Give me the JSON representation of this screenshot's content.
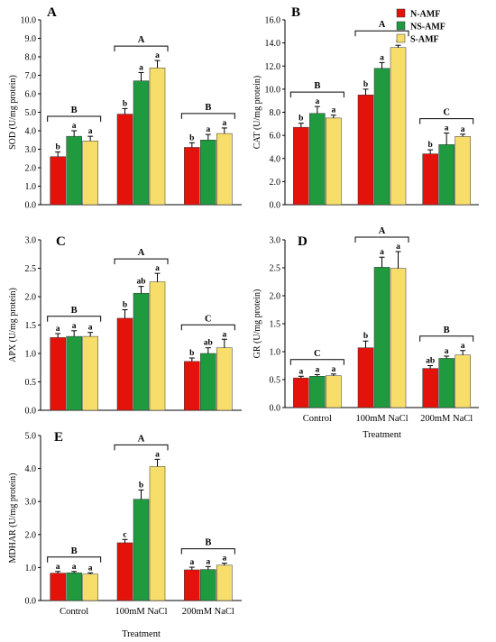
{
  "legend": [
    {
      "label": "N-AMF",
      "color": "#e3120b"
    },
    {
      "label": "NS-AMF",
      "color": "#1f9a3e"
    },
    {
      "label": "S-AMF",
      "color": "#f7de6b"
    }
  ],
  "chart_data": [
    {
      "panel": "A",
      "type": "bar",
      "ylabel": "SOD (U/mg protein)",
      "ylim": [
        0,
        10
      ],
      "yticks": [
        "0.0",
        "1.0",
        "2.0",
        "3.0",
        "4.0",
        "5.0",
        "6.0",
        "7.0",
        "8.0",
        "9.0",
        "10.0"
      ],
      "categories": [
        "Control",
        "100mM NaCl",
        "200mM NaCl"
      ],
      "series": [
        {
          "name": "N-AMF",
          "values": [
            2.6,
            4.9,
            3.1
          ],
          "errors": [
            0.25,
            0.3,
            0.25
          ],
          "letters": [
            "b",
            "b",
            "b"
          ]
        },
        {
          "name": "NS-AMF",
          "values": [
            3.7,
            6.7,
            3.5
          ],
          "errors": [
            0.3,
            0.45,
            0.3
          ],
          "letters": [
            "a",
            "a",
            "a"
          ]
        },
        {
          "name": "S-AMF",
          "values": [
            3.45,
            7.4,
            3.85
          ],
          "errors": [
            0.25,
            0.4,
            0.3
          ],
          "letters": [
            "a",
            "a",
            "a"
          ]
        }
      ],
      "group_letters": [
        "B",
        "A",
        "B"
      ],
      "xlabel": ""
    },
    {
      "panel": "B",
      "type": "bar",
      "ylabel": "CAT (U/mg protein)",
      "ylim": [
        0,
        16
      ],
      "yticks": [
        "0.0",
        "2.0",
        "4.0",
        "6.0",
        "8.0",
        "10.0",
        "12.0",
        "14.0",
        "16.0"
      ],
      "categories": [
        "Control",
        "100mM NaCl",
        "200mM NaCl"
      ],
      "series": [
        {
          "name": "N-AMF",
          "values": [
            6.7,
            9.5,
            4.4
          ],
          "errors": [
            0.35,
            0.5,
            0.35
          ],
          "letters": [
            "b",
            "b",
            "b"
          ]
        },
        {
          "name": "NS-AMF",
          "values": [
            7.9,
            11.8,
            5.2
          ],
          "errors": [
            0.6,
            0.5,
            1.0
          ],
          "letters": [
            "a",
            "a",
            "a"
          ]
        },
        {
          "name": "S-AMF",
          "values": [
            7.5,
            13.6,
            5.9
          ],
          "errors": [
            0.25,
            0.2,
            0.2
          ],
          "letters": [
            "a",
            "a",
            "a"
          ]
        }
      ],
      "group_letters": [
        "B",
        "A",
        "C"
      ],
      "xlabel": ""
    },
    {
      "panel": "C",
      "type": "bar",
      "ylabel": "APX (U/mg protein)",
      "ylim": [
        0,
        3
      ],
      "yticks": [
        "0.0",
        "0.5",
        "1.0",
        "1.5",
        "2.0",
        "2.5",
        "3.0"
      ],
      "categories": [
        "Control",
        "100mM NaCl",
        "200mM NaCl"
      ],
      "series": [
        {
          "name": "N-AMF",
          "values": [
            1.28,
            1.62,
            0.86
          ],
          "errors": [
            0.07,
            0.15,
            0.06
          ],
          "letters": [
            "a",
            "b",
            "b"
          ]
        },
        {
          "name": "NS-AMF",
          "values": [
            1.3,
            2.06,
            1.0
          ],
          "errors": [
            0.1,
            0.12,
            0.1
          ],
          "letters": [
            "a",
            "ab",
            "ab"
          ]
        },
        {
          "name": "S-AMF",
          "values": [
            1.3,
            2.26,
            1.1
          ],
          "errors": [
            0.07,
            0.15,
            0.15
          ],
          "letters": [
            "a",
            "a",
            "a"
          ]
        }
      ],
      "group_letters": [
        "B",
        "A",
        "C"
      ],
      "xlabel": ""
    },
    {
      "panel": "D",
      "type": "bar",
      "ylabel": "GR (U/mg protein)",
      "ylim": [
        0,
        3
      ],
      "yticks": [
        "0.0",
        "0.5",
        "1.0",
        "1.5",
        "2.0",
        "2.5",
        "3.0"
      ],
      "categories": [
        "Control",
        "100mM NaCl",
        "200mM NaCl"
      ],
      "series": [
        {
          "name": "N-AMF",
          "values": [
            0.53,
            1.07,
            0.7
          ],
          "errors": [
            0.03,
            0.12,
            0.05
          ],
          "letters": [
            "a",
            "b",
            "ab"
          ]
        },
        {
          "name": "NS-AMF",
          "values": [
            0.56,
            2.51,
            0.88
          ],
          "errors": [
            0.03,
            0.18,
            0.04
          ],
          "letters": [
            "a",
            "a",
            "a"
          ]
        },
        {
          "name": "S-AMF",
          "values": [
            0.57,
            2.49,
            0.94
          ],
          "errors": [
            0.03,
            0.3,
            0.08
          ],
          "letters": [
            "a",
            "a",
            "a"
          ]
        }
      ],
      "group_letters": [
        "C",
        "A",
        "B"
      ],
      "xlabel": "Treatment"
    },
    {
      "panel": "E",
      "type": "bar",
      "ylabel": "MDHAR (U/mg protein)",
      "ylim": [
        0,
        5
      ],
      "yticks": [
        "0.0",
        "1.0",
        "2.0",
        "3.0",
        "4.0",
        "5.0"
      ],
      "categories": [
        "Control",
        "100mM NaCl",
        "200mM NaCl"
      ],
      "series": [
        {
          "name": "N-AMF",
          "values": [
            0.83,
            1.75,
            0.93
          ],
          "errors": [
            0.05,
            0.1,
            0.08
          ],
          "letters": [
            "a",
            "c",
            "a"
          ]
        },
        {
          "name": "NS-AMF",
          "values": [
            0.84,
            3.07,
            0.94
          ],
          "errors": [
            0.04,
            0.28,
            0.09
          ],
          "letters": [
            "a",
            "b",
            "a"
          ]
        },
        {
          "name": "S-AMF",
          "values": [
            0.8,
            4.06,
            1.07
          ],
          "errors": [
            0.04,
            0.22,
            0.06
          ],
          "letters": [
            "a",
            "a",
            "a"
          ]
        }
      ],
      "group_letters": [
        "B",
        "A",
        "B"
      ],
      "xlabel": "Treatment"
    }
  ]
}
